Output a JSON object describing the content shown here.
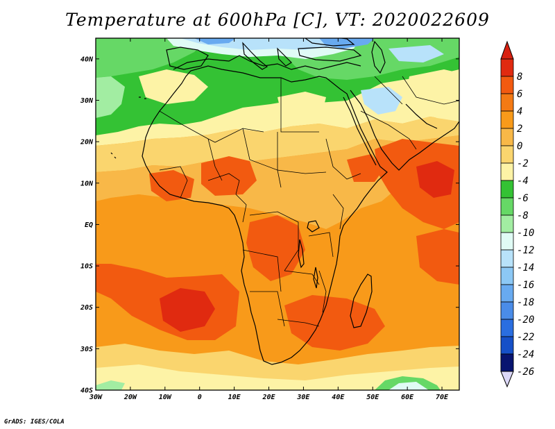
{
  "title": "Temperature at 600hPa [C], VT: 2020022609",
  "credit": "GrADS: IGES/COLA",
  "map": {
    "projection": "latlon",
    "lon_range": [
      -30,
      75
    ],
    "lat_range": [
      -40,
      45
    ],
    "lon_ticks": [
      {
        "value": -30,
        "label": "30W"
      },
      {
        "value": -20,
        "label": "20W"
      },
      {
        "value": -10,
        "label": "10W"
      },
      {
        "value": 0,
        "label": "0"
      },
      {
        "value": 10,
        "label": "10E"
      },
      {
        "value": 20,
        "label": "20E"
      },
      {
        "value": 30,
        "label": "30E"
      },
      {
        "value": 40,
        "label": "40E"
      },
      {
        "value": 50,
        "label": "50E"
      },
      {
        "value": 60,
        "label": "60E"
      },
      {
        "value": 70,
        "label": "70E"
      }
    ],
    "lat_ticks": [
      {
        "value": 40,
        "label": "40N"
      },
      {
        "value": 30,
        "label": "30N"
      },
      {
        "value": 20,
        "label": "20N"
      },
      {
        "value": 10,
        "label": "10N"
      },
      {
        "value": 0,
        "label": "EQ"
      },
      {
        "value": -10,
        "label": "10S"
      },
      {
        "value": -20,
        "label": "20S"
      },
      {
        "value": -30,
        "label": "30S"
      },
      {
        "value": -40,
        "label": "40S"
      }
    ]
  },
  "colorbar": {
    "levels": [
      {
        "label": "8",
        "color": "#e02a10"
      },
      {
        "label": "6",
        "color": "#f25a10"
      },
      {
        "label": "4",
        "color": "#f47a14"
      },
      {
        "label": "2",
        "color": "#f89a1a"
      },
      {
        "label": "0",
        "color": "#f8b848"
      },
      {
        "label": "-2",
        "color": "#fad56e"
      },
      {
        "label": "-4",
        "color": "#fdf3a6"
      },
      {
        "label": "-6",
        "color": "#34c234"
      },
      {
        "label": "-8",
        "color": "#66d866"
      },
      {
        "label": "-10",
        "color": "#a2eda2"
      },
      {
        "label": "-12",
        "color": "#e0fbf5"
      },
      {
        "label": "-14",
        "color": "#b8e2fa"
      },
      {
        "label": "-16",
        "color": "#8cc8f5"
      },
      {
        "label": "-18",
        "color": "#68aaf0"
      },
      {
        "label": "-20",
        "color": "#4a8ce8"
      },
      {
        "label": "-22",
        "color": "#2a6ee0"
      },
      {
        "label": "-24",
        "color": "#1650c8"
      },
      {
        "label": "-26",
        "color": "#0c2896"
      }
    ],
    "top_arrow_color": "#d82010",
    "bottom_arrow_color": "#dcd8f8",
    "bottom_box_color": "#081470"
  },
  "fields": {
    "orange": "#f89a1a",
    "dark_orange": "#f25a10",
    "red": "#e02a10",
    "light_orange": "#f8b848",
    "pale_orange": "#fad56e",
    "yellow": "#fdf3a6",
    "green": "#34c234",
    "light_green": "#66d866",
    "pale_green": "#a2eda2",
    "cyan": "#e0fbf5",
    "light_blue": "#b8e2fa",
    "blue": "#68aaf0"
  }
}
